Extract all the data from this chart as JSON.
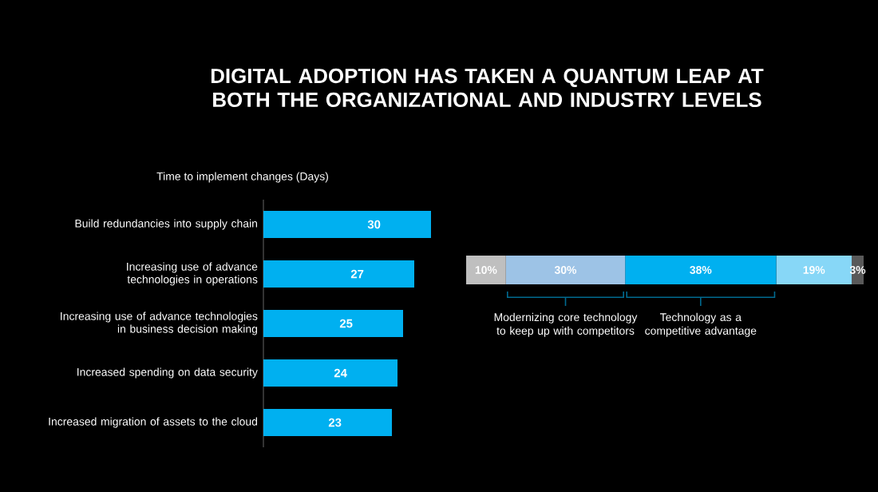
{
  "chart_data": [
    {
      "type": "bar",
      "orientation": "horizontal",
      "title": "DIGITAL ADOPTION HAS TAKEN A QUANTUM LEAP AT BOTH THE ORGANIZATIONAL AND INDUSTRY LEVELS",
      "subtitle": "Time to implement changes (Days)",
      "categories": [
        "Build redundancies into supply chain",
        "Increasing use of advance technologies in operations",
        "Increasing use of advance technologies in business decision making",
        "Increased spending on data security",
        "Increased migration of assets to the cloud"
      ],
      "values": [
        30,
        27,
        25,
        24,
        23
      ],
      "color": "#00b0f0",
      "data_labels": true
    },
    {
      "type": "bar",
      "orientation": "horizontal",
      "stacked": true,
      "categories": [
        null
      ],
      "series": [
        {
          "color": "#bfbfbf",
          "values": [
            10
          ],
          "value_labels": [
            "10%"
          ]
        },
        {
          "color": "#9dc3e6",
          "values": [
            30
          ],
          "value_labels": [
            "30%"
          ]
        },
        {
          "color": "#00b0f0",
          "values": [
            38
          ],
          "value_labels": [
            "38%"
          ]
        },
        {
          "color": "#87d7f7",
          "values": [
            19
          ],
          "value_labels": [
            "19%"
          ]
        },
        {
          "color": "#595959",
          "values": [
            3
          ],
          "value_labels": [
            "3%"
          ]
        }
      ],
      "annotations": [
        "Modernizing core technology to keep up with competitors",
        "Technology as a competitive advantage"
      ]
    }
  ]
}
